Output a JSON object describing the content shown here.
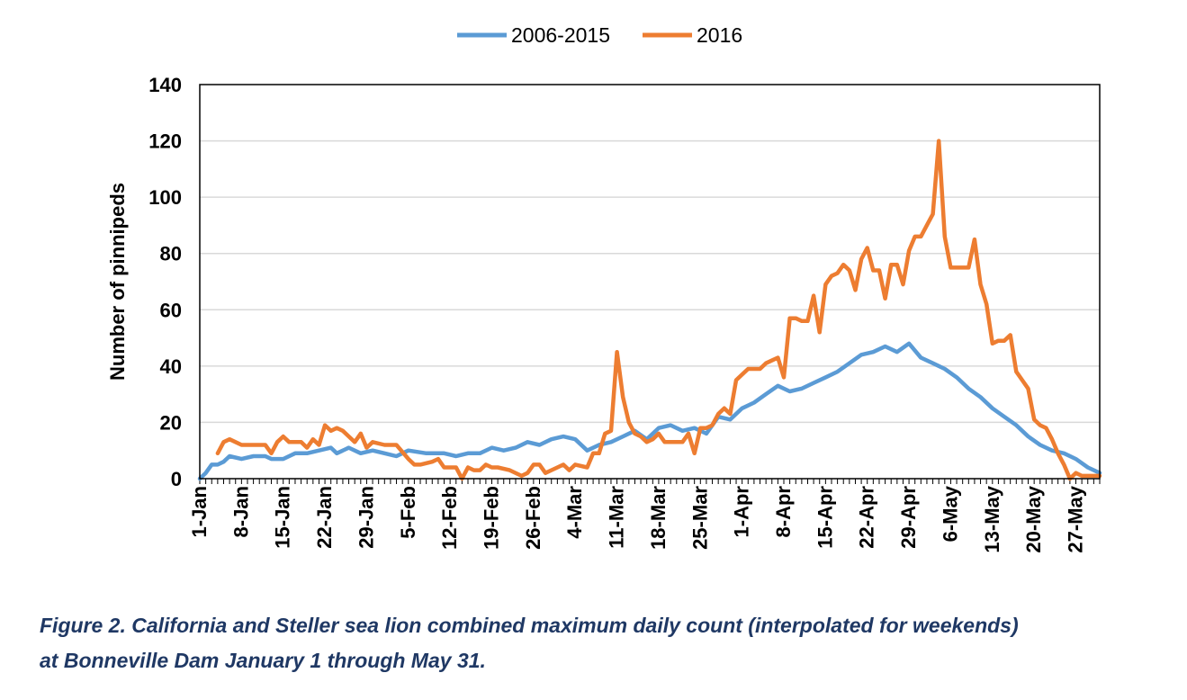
{
  "chart_data": {
    "type": "line",
    "title": "",
    "xlabel": "",
    "ylabel": "Number of pinnipeds",
    "ylim": [
      0,
      140
    ],
    "yticks": [
      0,
      20,
      40,
      60,
      80,
      100,
      120,
      140
    ],
    "xlim": [
      "2016-01-01",
      "2016-05-31"
    ],
    "x_tick_labels": [
      "1-Jan",
      "8-Jan",
      "15-Jan",
      "22-Jan",
      "29-Jan",
      "5-Feb",
      "12-Feb",
      "19-Feb",
      "26-Feb",
      "4-Mar",
      "11-Mar",
      "18-Mar",
      "25-Mar",
      "1-Apr",
      "8-Apr",
      "15-Apr",
      "22-Apr",
      "29-Apr",
      "6-May",
      "13-May",
      "20-May",
      "27-May"
    ],
    "grid": "horizontal",
    "legend_position": "top-center",
    "series": [
      {
        "name": "2006-2015",
        "color": "#5b9bd5",
        "points": [
          [
            "2016-01-01",
            0
          ],
          [
            "2016-01-02",
            2
          ],
          [
            "2016-01-03",
            5
          ],
          [
            "2016-01-04",
            5
          ],
          [
            "2016-01-05",
            6
          ],
          [
            "2016-01-06",
            8
          ],
          [
            "2016-01-08",
            7
          ],
          [
            "2016-01-10",
            8
          ],
          [
            "2016-01-12",
            8
          ],
          [
            "2016-01-13",
            7
          ],
          [
            "2016-01-15",
            7
          ],
          [
            "2016-01-17",
            9
          ],
          [
            "2016-01-19",
            9
          ],
          [
            "2016-01-21",
            10
          ],
          [
            "2016-01-23",
            11
          ],
          [
            "2016-01-24",
            9
          ],
          [
            "2016-01-26",
            11
          ],
          [
            "2016-01-28",
            9
          ],
          [
            "2016-01-30",
            10
          ],
          [
            "2016-02-01",
            9
          ],
          [
            "2016-02-03",
            8
          ],
          [
            "2016-02-05",
            10
          ],
          [
            "2016-02-08",
            9
          ],
          [
            "2016-02-11",
            9
          ],
          [
            "2016-02-13",
            8
          ],
          [
            "2016-02-15",
            9
          ],
          [
            "2016-02-17",
            9
          ],
          [
            "2016-02-19",
            11
          ],
          [
            "2016-02-21",
            10
          ],
          [
            "2016-02-23",
            11
          ],
          [
            "2016-02-25",
            13
          ],
          [
            "2016-02-27",
            12
          ],
          [
            "2016-02-29",
            14
          ],
          [
            "2016-03-02",
            15
          ],
          [
            "2016-03-04",
            14
          ],
          [
            "2016-03-06",
            10
          ],
          [
            "2016-03-08",
            12
          ],
          [
            "2016-03-10",
            13
          ],
          [
            "2016-03-12",
            15
          ],
          [
            "2016-03-14",
            17
          ],
          [
            "2016-03-16",
            14
          ],
          [
            "2016-03-18",
            18
          ],
          [
            "2016-03-20",
            19
          ],
          [
            "2016-03-22",
            17
          ],
          [
            "2016-03-24",
            18
          ],
          [
            "2016-03-26",
            16
          ],
          [
            "2016-03-28",
            22
          ],
          [
            "2016-03-30",
            21
          ],
          [
            "2016-04-01",
            25
          ],
          [
            "2016-04-03",
            27
          ],
          [
            "2016-04-05",
            30
          ],
          [
            "2016-04-07",
            33
          ],
          [
            "2016-04-09",
            31
          ],
          [
            "2016-04-11",
            32
          ],
          [
            "2016-04-13",
            34
          ],
          [
            "2016-04-15",
            36
          ],
          [
            "2016-04-17",
            38
          ],
          [
            "2016-04-19",
            41
          ],
          [
            "2016-04-21",
            44
          ],
          [
            "2016-04-23",
            45
          ],
          [
            "2016-04-25",
            47
          ],
          [
            "2016-04-27",
            45
          ],
          [
            "2016-04-29",
            48
          ],
          [
            "2016-05-01",
            43
          ],
          [
            "2016-05-03",
            41
          ],
          [
            "2016-05-05",
            39
          ],
          [
            "2016-05-07",
            36
          ],
          [
            "2016-05-09",
            32
          ],
          [
            "2016-05-11",
            29
          ],
          [
            "2016-05-13",
            25
          ],
          [
            "2016-05-15",
            22
          ],
          [
            "2016-05-17",
            19
          ],
          [
            "2016-05-19",
            15
          ],
          [
            "2016-05-21",
            12
          ],
          [
            "2016-05-23",
            10
          ],
          [
            "2016-05-25",
            9
          ],
          [
            "2016-05-27",
            7
          ],
          [
            "2016-05-29",
            4
          ],
          [
            "2016-05-31",
            2
          ]
        ]
      },
      {
        "name": "2016",
        "color": "#ed7d31",
        "points": [
          [
            "2016-01-04",
            9
          ],
          [
            "2016-01-05",
            13
          ],
          [
            "2016-01-06",
            14
          ],
          [
            "2016-01-07",
            13
          ],
          [
            "2016-01-08",
            12
          ],
          [
            "2016-01-10",
            12
          ],
          [
            "2016-01-12",
            12
          ],
          [
            "2016-01-13",
            9
          ],
          [
            "2016-01-14",
            13
          ],
          [
            "2016-01-15",
            15
          ],
          [
            "2016-01-16",
            13
          ],
          [
            "2016-01-18",
            13
          ],
          [
            "2016-01-19",
            11
          ],
          [
            "2016-01-20",
            14
          ],
          [
            "2016-01-21",
            12
          ],
          [
            "2016-01-22",
            19
          ],
          [
            "2016-01-23",
            17
          ],
          [
            "2016-01-24",
            18
          ],
          [
            "2016-01-25",
            17
          ],
          [
            "2016-01-26",
            15
          ],
          [
            "2016-01-27",
            13
          ],
          [
            "2016-01-28",
            16
          ],
          [
            "2016-01-29",
            11
          ],
          [
            "2016-01-30",
            13
          ],
          [
            "2016-02-01",
            12
          ],
          [
            "2016-02-03",
            12
          ],
          [
            "2016-02-05",
            7
          ],
          [
            "2016-02-06",
            5
          ],
          [
            "2016-02-07",
            5
          ],
          [
            "2016-02-09",
            6
          ],
          [
            "2016-02-10",
            7
          ],
          [
            "2016-02-11",
            4
          ],
          [
            "2016-02-13",
            4
          ],
          [
            "2016-02-14",
            0
          ],
          [
            "2016-02-15",
            4
          ],
          [
            "2016-02-16",
            3
          ],
          [
            "2016-02-17",
            3
          ],
          [
            "2016-02-18",
            5
          ],
          [
            "2016-02-19",
            4
          ],
          [
            "2016-02-20",
            4
          ],
          [
            "2016-02-22",
            3
          ],
          [
            "2016-02-24",
            1
          ],
          [
            "2016-02-25",
            2
          ],
          [
            "2016-02-26",
            5
          ],
          [
            "2016-02-27",
            5
          ],
          [
            "2016-02-28",
            2
          ],
          [
            "2016-02-29",
            3
          ],
          [
            "2016-03-01",
            4
          ],
          [
            "2016-03-02",
            5
          ],
          [
            "2016-03-03",
            3
          ],
          [
            "2016-03-04",
            5
          ],
          [
            "2016-03-06",
            4
          ],
          [
            "2016-03-07",
            9
          ],
          [
            "2016-03-08",
            9
          ],
          [
            "2016-03-09",
            16
          ],
          [
            "2016-03-10",
            17
          ],
          [
            "2016-03-11",
            45
          ],
          [
            "2016-03-12",
            29
          ],
          [
            "2016-03-13",
            20
          ],
          [
            "2016-03-14",
            16
          ],
          [
            "2016-03-15",
            15
          ],
          [
            "2016-03-16",
            13
          ],
          [
            "2016-03-17",
            14
          ],
          [
            "2016-03-18",
            16
          ],
          [
            "2016-03-19",
            13
          ],
          [
            "2016-03-20",
            13
          ],
          [
            "2016-03-22",
            13
          ],
          [
            "2016-03-23",
            16
          ],
          [
            "2016-03-24",
            9
          ],
          [
            "2016-03-25",
            18
          ],
          [
            "2016-03-26",
            18
          ],
          [
            "2016-03-27",
            19
          ],
          [
            "2016-03-28",
            23
          ],
          [
            "2016-03-29",
            25
          ],
          [
            "2016-03-30",
            23
          ],
          [
            "2016-03-31",
            35
          ],
          [
            "2016-04-01",
            37
          ],
          [
            "2016-04-02",
            39
          ],
          [
            "2016-04-04",
            39
          ],
          [
            "2016-04-05",
            41
          ],
          [
            "2016-04-06",
            42
          ],
          [
            "2016-04-07",
            43
          ],
          [
            "2016-04-08",
            36
          ],
          [
            "2016-04-09",
            57
          ],
          [
            "2016-04-10",
            57
          ],
          [
            "2016-04-11",
            56
          ],
          [
            "2016-04-12",
            56
          ],
          [
            "2016-04-13",
            65
          ],
          [
            "2016-04-14",
            52
          ],
          [
            "2016-04-15",
            69
          ],
          [
            "2016-04-16",
            72
          ],
          [
            "2016-04-17",
            73
          ],
          [
            "2016-04-18",
            76
          ],
          [
            "2016-04-19",
            74
          ],
          [
            "2016-04-20",
            67
          ],
          [
            "2016-04-21",
            78
          ],
          [
            "2016-04-22",
            82
          ],
          [
            "2016-04-23",
            74
          ],
          [
            "2016-04-24",
            74
          ],
          [
            "2016-04-25",
            64
          ],
          [
            "2016-04-26",
            76
          ],
          [
            "2016-04-27",
            76
          ],
          [
            "2016-04-28",
            69
          ],
          [
            "2016-04-29",
            81
          ],
          [
            "2016-04-30",
            86
          ],
          [
            "2016-05-01",
            86
          ],
          [
            "2016-05-02",
            90
          ],
          [
            "2016-05-03",
            94
          ],
          [
            "2016-05-04",
            120
          ],
          [
            "2016-05-05",
            86
          ],
          [
            "2016-05-06",
            75
          ],
          [
            "2016-05-07",
            75
          ],
          [
            "2016-05-08",
            75
          ],
          [
            "2016-05-09",
            75
          ],
          [
            "2016-05-10",
            85
          ],
          [
            "2016-05-11",
            69
          ],
          [
            "2016-05-12",
            62
          ],
          [
            "2016-05-13",
            48
          ],
          [
            "2016-05-14",
            49
          ],
          [
            "2016-05-15",
            49
          ],
          [
            "2016-05-16",
            51
          ],
          [
            "2016-05-17",
            38
          ],
          [
            "2016-05-18",
            35
          ],
          [
            "2016-05-19",
            32
          ],
          [
            "2016-05-20",
            21
          ],
          [
            "2016-05-21",
            19
          ],
          [
            "2016-05-22",
            18
          ],
          [
            "2016-05-23",
            14
          ],
          [
            "2016-05-24",
            9
          ],
          [
            "2016-05-25",
            5
          ],
          [
            "2016-05-26",
            0
          ],
          [
            "2016-05-27",
            2
          ],
          [
            "2016-05-28",
            1
          ],
          [
            "2016-05-29",
            1
          ],
          [
            "2016-05-30",
            1
          ],
          [
            "2016-05-31",
            1
          ]
        ]
      }
    ]
  },
  "caption": {
    "line1": "Figure 2.  California and Steller sea lion combined maximum daily count (interpolated for weekends)",
    "line2": "at Bonneville Dam January 1 through May 31."
  }
}
